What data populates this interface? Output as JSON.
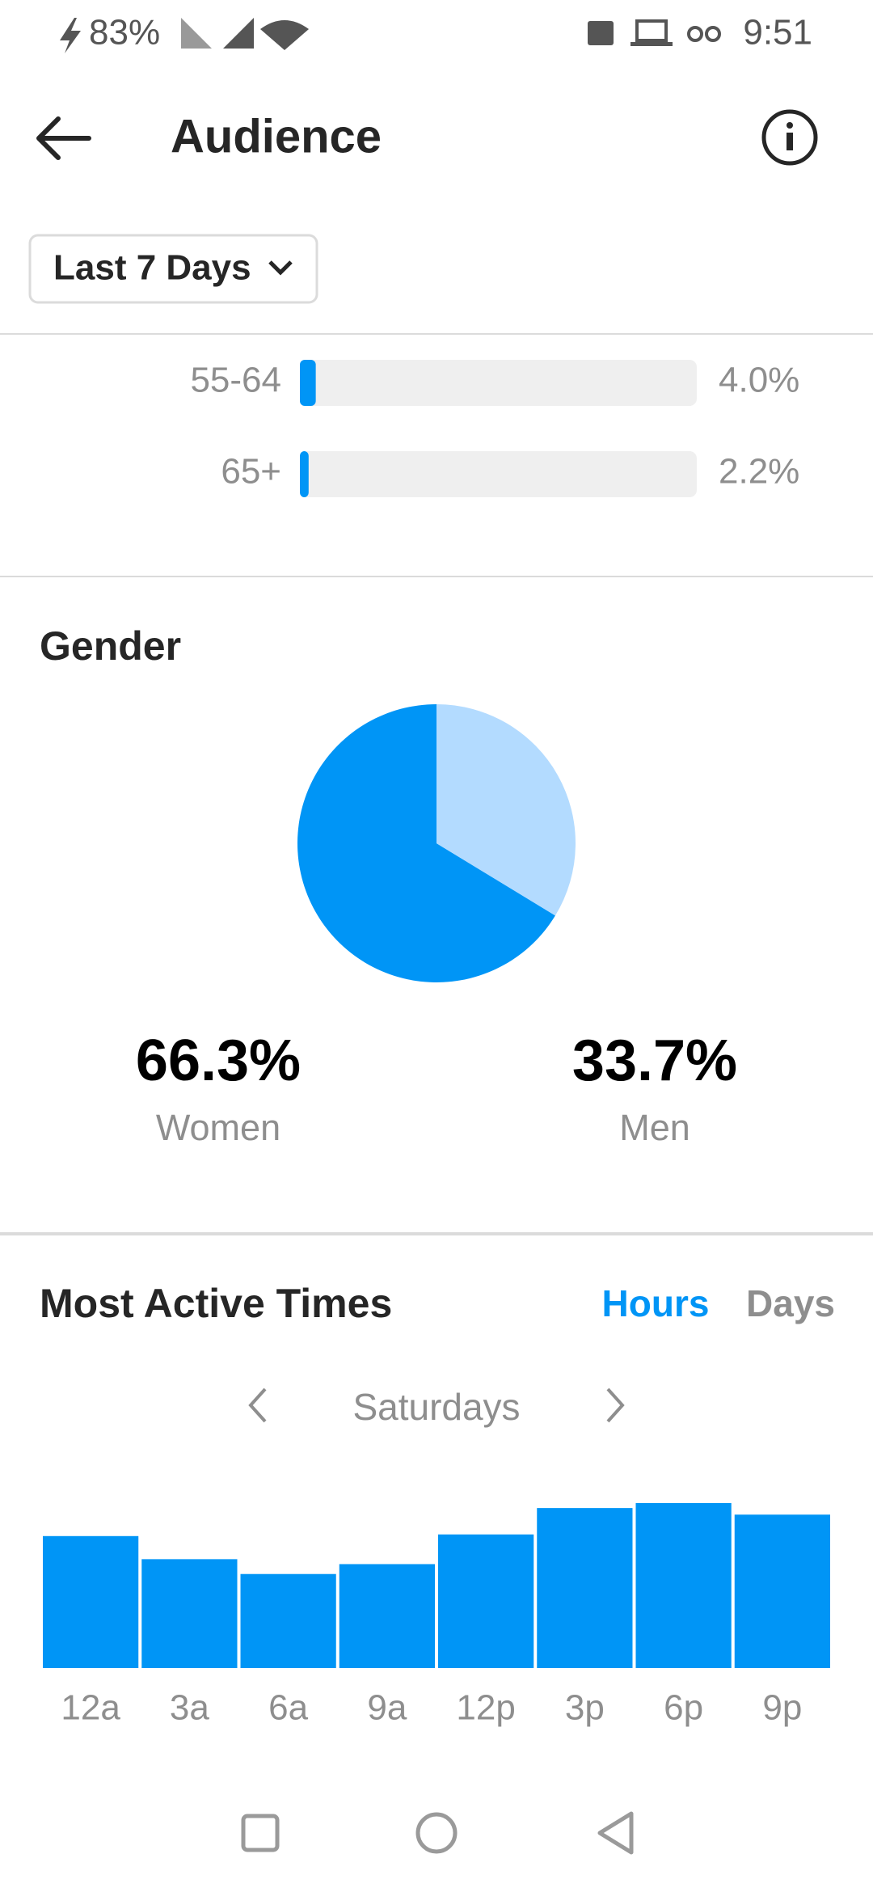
{
  "status_bar": {
    "battery": "83%",
    "time": "9:51"
  },
  "header": {
    "title": "Audience"
  },
  "filter": {
    "label": "Last 7 Days"
  },
  "age_chart": {
    "type": "bar",
    "orientation": "horizontal",
    "categories": [
      "55-64",
      "65+"
    ],
    "values": [
      4.0,
      2.2
    ],
    "value_labels": [
      "4.0%",
      "2.2%"
    ],
    "xlim": [
      0,
      100
    ],
    "color": "#0095f6"
  },
  "gender": {
    "title": "Gender",
    "chart": {
      "type": "pie",
      "categories": [
        "Women",
        "Men"
      ],
      "values": [
        66.3,
        33.7
      ],
      "value_labels": [
        "66.3%",
        "33.7%"
      ],
      "colors": [
        "#0095f6",
        "#b3dbff"
      ]
    }
  },
  "active_times": {
    "title": "Most Active Times",
    "tabs": [
      "Hours",
      "Days"
    ],
    "selected_tab": 0,
    "day": "Saturdays",
    "chart": {
      "type": "bar",
      "categories": [
        "12a",
        "3a",
        "6a",
        "9a",
        "12p",
        "3p",
        "6p",
        "9p"
      ],
      "values": [
        80,
        66,
        57,
        63,
        81,
        97,
        100,
        93
      ],
      "ylim": [
        0,
        100
      ],
      "color": "#0095f6"
    }
  }
}
